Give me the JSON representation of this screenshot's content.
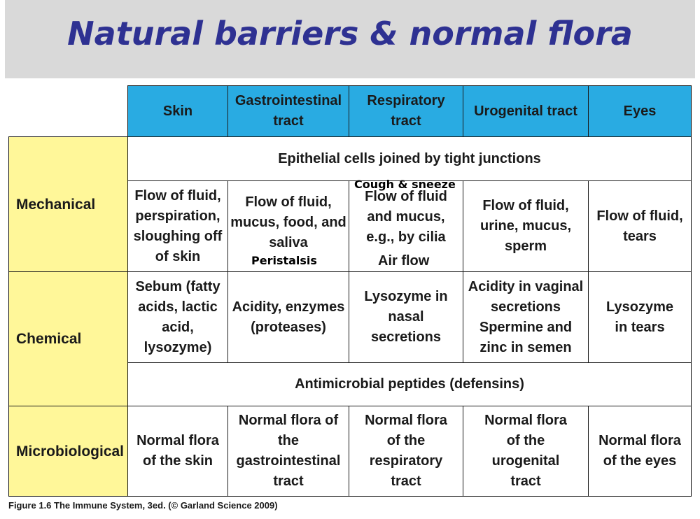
{
  "title": "Natural barriers & normal flora",
  "columns": [
    "Skin",
    "Gastrointestinal tract",
    "Respiratory tract",
    "Urogenital tract",
    "Eyes"
  ],
  "rows": {
    "mechanical": {
      "label": "Mechanical",
      "span": "Epithelial cells joined by tight junctions",
      "cells": [
        "Flow of fluid, perspiration, sloughing off of skin",
        "Flow of fluid, mucus, food, and saliva",
        "Flow of fluid and mucus, e.g., by cilia",
        "Flow of fluid, urine, mucus, sperm",
        "Flow of fluid, tears"
      ]
    },
    "chemical": {
      "label": "Chemical",
      "cells": [
        "Sebum (fatty acids, lactic acid, lysozyme)",
        "Acidity, enzymes (proteases)",
        "Lysozyme in nasal secretions",
        "Acidity in vaginal secretions Spermine and zinc in semen",
        "Lysozyme in tears"
      ],
      "span": "Antimicrobial peptides (defensins)"
    },
    "microbiological": {
      "label": "Microbiological",
      "cells": [
        "Normal flora of the skin",
        "Normal flora of the gastrointestinal tract",
        "Normal flora of the respiratory tract",
        "Normal flora of the urogenital tract",
        "Normal flora of the eyes"
      ]
    }
  },
  "annotations": {
    "cough": "Cough & sneeze",
    "peristalsis": "Peristalsis",
    "airflow": "Air flow"
  },
  "caption": "Figure 1.6 The Immune System, 3ed. (© Garland Science 2009)"
}
